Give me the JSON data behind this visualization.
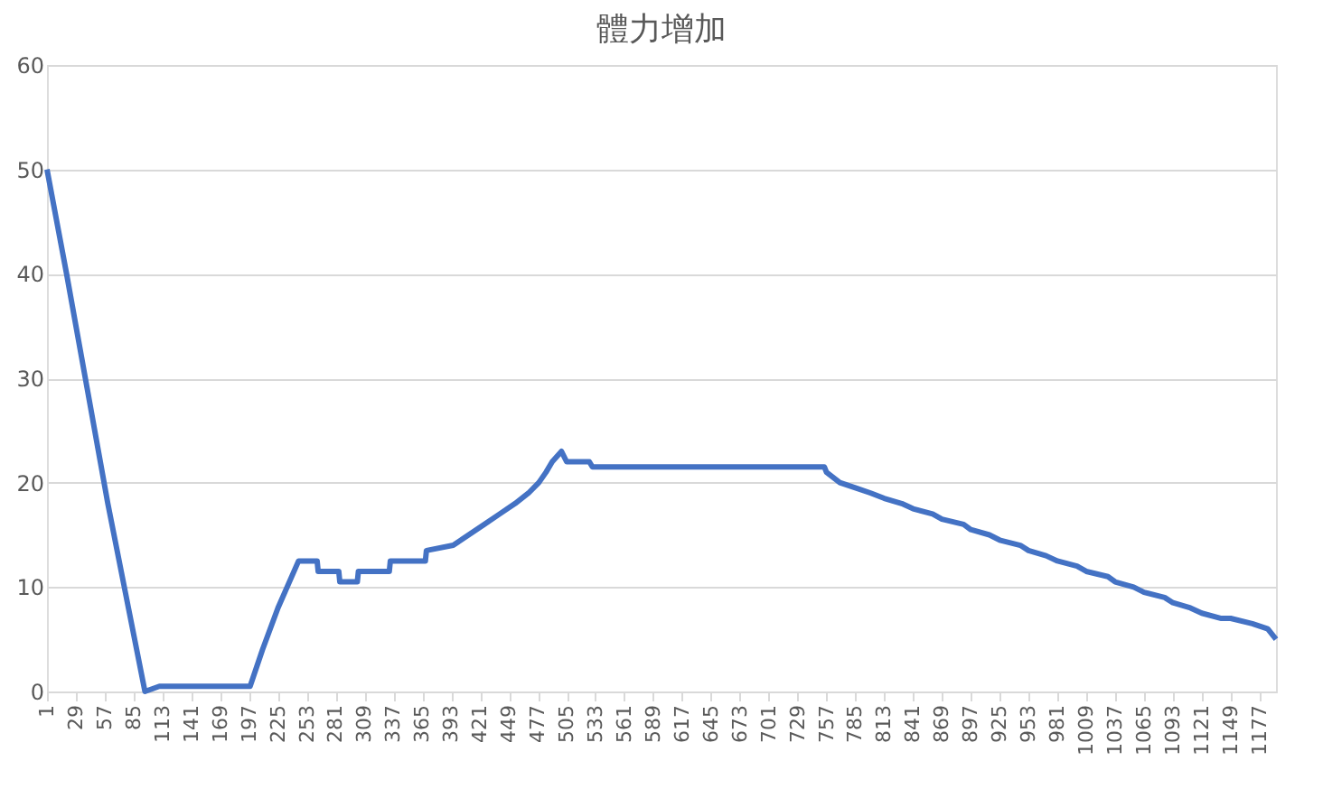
{
  "chart_data": {
    "type": "line",
    "title": "體力增加",
    "color": "#4472c4",
    "x": [
      1,
      20,
      40,
      60,
      80,
      96,
      110,
      150,
      198,
      210,
      225,
      245,
      263,
      264,
      284,
      285,
      302,
      303,
      333,
      334,
      368,
      369,
      395,
      410,
      425,
      440,
      455,
      468,
      478,
      485,
      491,
      500,
      505,
      527,
      530,
      600,
      700,
      755,
      757,
      770,
      785,
      800,
      813,
      830,
      841,
      860,
      869,
      890,
      897,
      915,
      925,
      945,
      953,
      970,
      981,
      1000,
      1009,
      1030,
      1037,
      1055,
      1065,
      1085,
      1093,
      1110,
      1121,
      1140,
      1149,
      1170,
      1185,
      1193
    ],
    "values": [
      50,
      40,
      29,
      18,
      8,
      0,
      0.5,
      0.5,
      0.5,
      4,
      8,
      12.5,
      12.5,
      11.5,
      11.5,
      10.5,
      10.5,
      11.5,
      11.5,
      12.5,
      12.5,
      13.5,
      14,
      15,
      16,
      17,
      18,
      19,
      20,
      21,
      22,
      23,
      22,
      22,
      21.5,
      21.5,
      21.5,
      21.5,
      21,
      20,
      19.5,
      19,
      18.5,
      18,
      17.5,
      17,
      16.5,
      16,
      15.5,
      15,
      14.5,
      14,
      13.5,
      13,
      12.5,
      12,
      11.5,
      11,
      10.5,
      10,
      9.5,
      9,
      8.5,
      8,
      7.5,
      7,
      7,
      6.5,
      6,
      5
    ],
    "xlim": [
      1,
      1193
    ],
    "xticks": [
      1,
      29,
      57,
      85,
      113,
      141,
      169,
      197,
      225,
      253,
      281,
      309,
      337,
      365,
      393,
      421,
      449,
      477,
      505,
      533,
      561,
      589,
      617,
      645,
      673,
      701,
      729,
      757,
      785,
      813,
      841,
      869,
      897,
      925,
      953,
      981,
      1009,
      1037,
      1065,
      1093,
      1121,
      1149,
      1177
    ],
    "ylim": [
      0,
      60
    ],
    "yticks": [
      0,
      10,
      20,
      30,
      40,
      50,
      60
    ],
    "grid": "y",
    "marker": "none",
    "line_style": "solid"
  }
}
